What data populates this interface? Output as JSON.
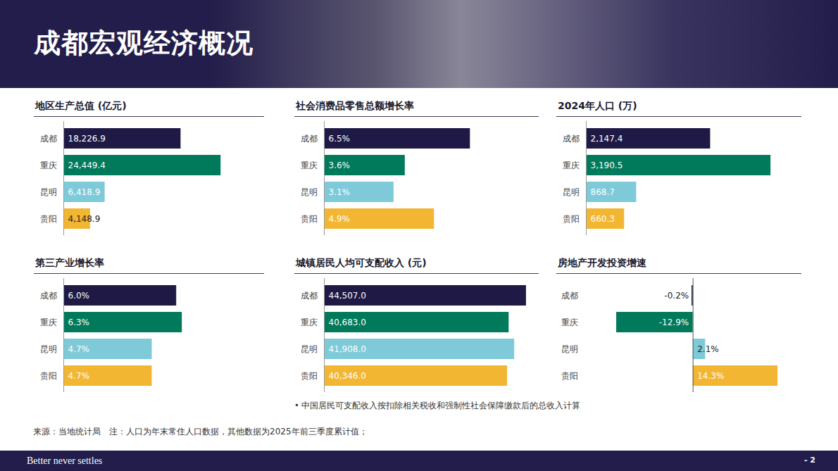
{
  "page": {
    "title": "成都宏观经济概况",
    "note": "• 中国居民可支配收入按扣除相关税收和强制性社会保障缴款后的总收入计算",
    "source": "来源：当地统计局　注：人口为年末常住人口数据，其他数据为2025年前三季度累计值；",
    "tagline": "Better never settles",
    "page_number": "- 2"
  },
  "chart_data": [
    {
      "type": "bar",
      "orientation": "horizontal",
      "title": "地区生产总值 (亿元)",
      "categories": [
        "成都",
        "重庆",
        "昆明",
        "贵阳"
      ],
      "values": [
        18226.9,
        24449.4,
        6418.9,
        4148.9
      ],
      "value_labels": [
        "18,226.9",
        "24,449.4",
        "6,418.9",
        "4,148.9"
      ],
      "colors": [
        "#1e1a45",
        "#007a5a",
        "#7ecad8",
        "#f2b632"
      ],
      "xlim": [
        0,
        31000
      ],
      "data_labels": true,
      "tick_labels": "y"
    },
    {
      "type": "bar",
      "orientation": "horizontal",
      "title": "社会消费品零售总额增长率",
      "categories": [
        "成都",
        "重庆",
        "昆明",
        "贵阳"
      ],
      "values": [
        6.5,
        3.6,
        3.1,
        4.9
      ],
      "value_labels": [
        "6.5%",
        "3.6%",
        "3.1%",
        "4.9%"
      ],
      "colors": [
        "#1e1a45",
        "#007a5a",
        "#7ecad8",
        "#f2b632"
      ],
      "xlim": [
        0,
        9.5
      ],
      "data_labels": true,
      "tick_labels": "y"
    },
    {
      "type": "bar",
      "orientation": "horizontal",
      "title": "2024年人口 (万)",
      "categories": [
        "成都",
        "重庆",
        "昆明",
        "贵阳"
      ],
      "values": [
        2147.4,
        3190.5,
        868.7,
        660.3
      ],
      "value_labels": [
        "2,147.4",
        "3,190.5",
        "868.7",
        "660.3"
      ],
      "colors": [
        "#1e1a45",
        "#007a5a",
        "#7ecad8",
        "#f2b632"
      ],
      "xlim": [
        0,
        3700
      ],
      "data_labels": true,
      "tick_labels": "y"
    },
    {
      "type": "bar",
      "orientation": "horizontal",
      "title": "第三产业增长率",
      "categories": [
        "成都",
        "重庆",
        "昆明",
        "贵阳"
      ],
      "values": [
        6.0,
        6.3,
        4.7,
        4.7
      ],
      "value_labels": [
        "6.0%",
        "6.3%",
        "4.7%",
        "4.7%"
      ],
      "colors": [
        "#1e1a45",
        "#007a5a",
        "#7ecad8",
        "#f2b632"
      ],
      "xlim": [
        0,
        10.6
      ],
      "data_labels": true,
      "tick_labels": "y"
    },
    {
      "type": "bar",
      "orientation": "horizontal",
      "title": "城镇居民人均可支配收入 (元)",
      "categories": [
        "成都",
        "重庆",
        "昆明",
        "贵阳"
      ],
      "values": [
        44507.0,
        40683.0,
        41908.0,
        40346.0
      ],
      "value_labels": [
        "44,507.0",
        "40,683.0",
        "41,908.0",
        "40,346.0"
      ],
      "colors": [
        "#1e1a45",
        "#007a5a",
        "#7ecad8",
        "#f2b632"
      ],
      "xlim": [
        0,
        47000
      ],
      "data_labels": true,
      "tick_labels": "y"
    },
    {
      "type": "bar",
      "orientation": "horizontal",
      "title": "房地产开发投资增速",
      "categories": [
        "成都",
        "重庆",
        "昆明",
        "贵阳"
      ],
      "values": [
        -0.2,
        -12.9,
        2.1,
        14.3
      ],
      "value_labels": [
        "-0.2%",
        "-12.9%",
        "2.1%",
        "14.3%"
      ],
      "colors": [
        "#1e1a45",
        "#007a5a",
        "#7ecad8",
        "#f2b632"
      ],
      "xlim": [
        -13.5,
        15
      ],
      "data_labels": true,
      "tick_labels": "y"
    }
  ]
}
